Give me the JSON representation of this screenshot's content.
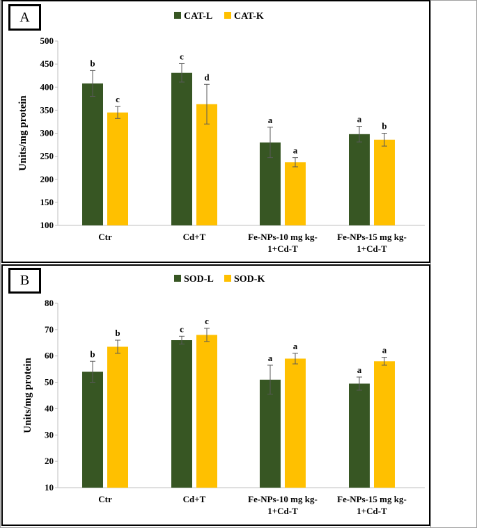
{
  "chart_data": [
    {
      "panel": "A",
      "type": "bar",
      "categories": [
        [
          "Ctr"
        ],
        [
          "Cd+T"
        ],
        [
          "Fe-NPs-10 mg kg-",
          "1+Cd-T"
        ],
        [
          "Fe-NPs-15 mg kg-",
          "1+Cd-T"
        ]
      ],
      "ylabel": "Units/mg protein",
      "ylim": [
        100,
        500
      ],
      "yticks": [
        100,
        150,
        200,
        250,
        300,
        350,
        400,
        450,
        500
      ],
      "legend_position": "top-center",
      "grid": false,
      "series": [
        {
          "name": "CAT-L",
          "color": "#375623",
          "values": [
            408,
            431,
            280,
            298
          ],
          "errors": [
            28,
            20,
            33,
            17
          ],
          "labels": [
            "b",
            "c",
            "a",
            "a"
          ]
        },
        {
          "name": "CAT-K",
          "color": "#ffc000",
          "values": [
            345,
            363,
            237,
            286
          ],
          "errors": [
            13,
            43,
            10,
            14
          ],
          "labels": [
            "c",
            "d",
            "a",
            "b"
          ]
        }
      ]
    },
    {
      "panel": "B",
      "type": "bar",
      "categories": [
        [
          "Ctr"
        ],
        [
          "Cd+T"
        ],
        [
          "Fe-NPs-10 mg kg-",
          "1+Cd-T"
        ],
        [
          "Fe-NPs-15 mg kg-",
          "1+Cd-T"
        ]
      ],
      "ylabel": "Units/mg protein",
      "ylim": [
        10,
        80
      ],
      "yticks": [
        10,
        20,
        30,
        40,
        50,
        60,
        70,
        80
      ],
      "legend_position": "top-center",
      "grid": false,
      "series": [
        {
          "name": "SOD-L",
          "color": "#375623",
          "values": [
            54,
            66,
            51,
            49.5
          ],
          "errors": [
            4,
            1.5,
            5.5,
            2.5
          ],
          "labels": [
            "b",
            "c",
            "a",
            "a"
          ]
        },
        {
          "name": "SOD-K",
          "color": "#ffc000",
          "values": [
            63.5,
            68,
            59,
            58
          ],
          "errors": [
            2.5,
            2.5,
            2,
            1.5
          ],
          "labels": [
            "b",
            "c",
            "a",
            "a"
          ]
        }
      ]
    }
  ]
}
